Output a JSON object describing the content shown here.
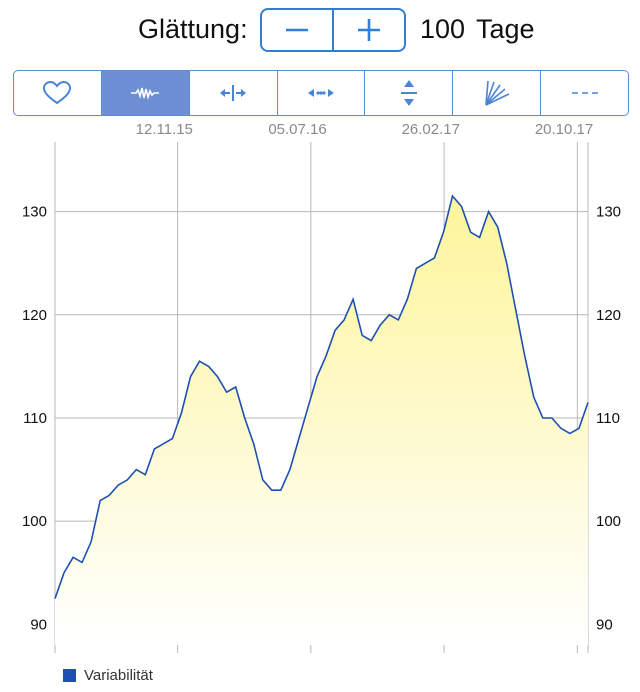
{
  "smoothing": {
    "label": "Glättung:",
    "minus_symbol": "−",
    "plus_symbol": "+",
    "value": "100",
    "unit": "Tage"
  },
  "toolbar": {
    "tools": [
      {
        "icon": "heart-icon",
        "active": false
      },
      {
        "icon": "waveform-icon",
        "active": true
      },
      {
        "icon": "horizontal-expand-icon",
        "active": false
      },
      {
        "icon": "horizontal-dots-arrows-icon",
        "active": false
      },
      {
        "icon": "vertical-expand-icon",
        "active": false
      },
      {
        "icon": "fan-lines-icon",
        "active": false
      },
      {
        "icon": "dashed-line-icon",
        "active": false
      }
    ],
    "accent": "#2f7fd3",
    "active_bg": "#6d8fd4"
  },
  "chart_data": {
    "type": "area",
    "x_tick_labels": [
      "12.11.15",
      "05.07.16",
      "26.02.17",
      "20.10.17"
    ],
    "y_ticks": [
      90,
      100,
      110,
      120,
      130
    ],
    "ylim": [
      88,
      135
    ],
    "grid": true,
    "legend_position": "bottom-left",
    "line_color": "#1e4fb3",
    "fill_top_color": "#fdf59a",
    "fill_bottom_color": "#ffffff",
    "series": [
      {
        "name": "Variabilität",
        "values": [
          92.5,
          95,
          96.5,
          96,
          98,
          102,
          102.5,
          103.5,
          104,
          105,
          104.5,
          107,
          107.5,
          108,
          110.5,
          114,
          115.5,
          115,
          114,
          112.5,
          113,
          110,
          107.5,
          104,
          103,
          103,
          105,
          108,
          111,
          114,
          116,
          118.5,
          119.5,
          121.5,
          118,
          117.5,
          119,
          120,
          119.5,
          121.5,
          124.5,
          125,
          125.5,
          128,
          131.5,
          130.5,
          128,
          127.5,
          130,
          128.5,
          125,
          120.5,
          116,
          112,
          110,
          110,
          109,
          108.5,
          109,
          111.5
        ]
      }
    ]
  },
  "legend": {
    "label": "Variabilität",
    "color": "#1e4fb3"
  }
}
